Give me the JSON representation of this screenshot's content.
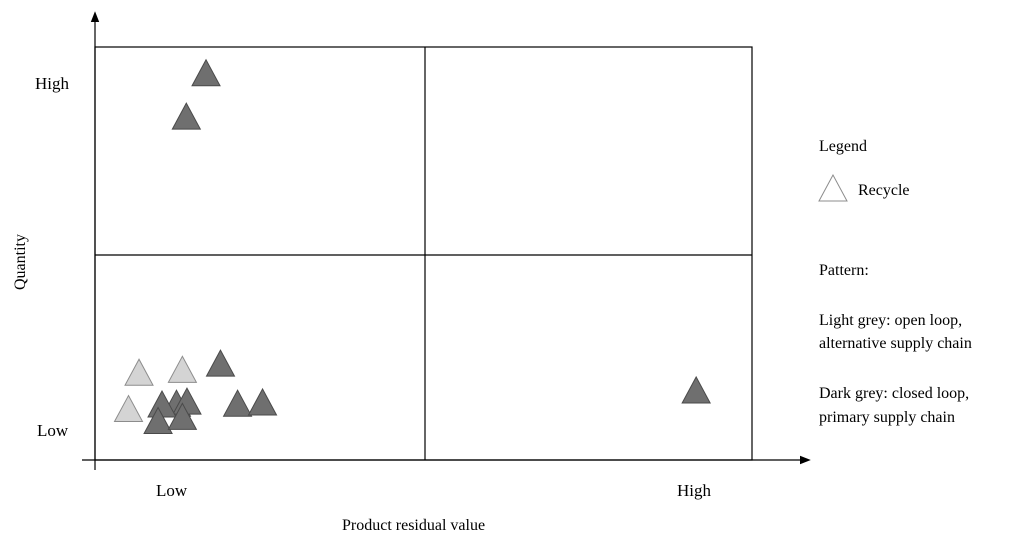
{
  "chart_data": {
    "type": "scatter",
    "title": "",
    "xlabel": "Product residual value",
    "ylabel": "Quantity",
    "x_ticks": [
      "Low",
      "High"
    ],
    "y_ticks": [
      "High",
      "Low"
    ],
    "xlim": [
      0,
      1
    ],
    "ylim": [
      0,
      1
    ],
    "grid": "2x2 quadrants",
    "legend_placement": "right",
    "legend": {
      "heading": "Legend",
      "marker_label": "Recycle",
      "pattern_heading": "Pattern:",
      "light_lines": [
        "Light grey: open loop,",
        "alternative supply chain"
      ],
      "dark_lines": [
        "Dark grey: closed loop,",
        "primary supply chain"
      ]
    },
    "colors": {
      "light": "#d4d4d4",
      "light_stroke": "#8c8c8c",
      "dark": "#6f6f6f",
      "dark_stroke": "#4a4a4a",
      "legend_marker": "#ffffff"
    },
    "series": [
      {
        "pattern": "light",
        "points": [
          {
            "x": 0.133,
            "y": 0.212
          },
          {
            "x": 0.067,
            "y": 0.205
          },
          {
            "x": 0.051,
            "y": 0.117
          }
        ]
      },
      {
        "pattern": "dark",
        "points": [
          {
            "x": 0.169,
            "y": 0.93
          },
          {
            "x": 0.139,
            "y": 0.825
          },
          {
            "x": 0.191,
            "y": 0.227
          },
          {
            "x": 0.124,
            "y": 0.13
          },
          {
            "x": 0.14,
            "y": 0.135
          },
          {
            "x": 0.102,
            "y": 0.128
          },
          {
            "x": 0.096,
            "y": 0.088
          },
          {
            "x": 0.133,
            "y": 0.098
          },
          {
            "x": 0.217,
            "y": 0.13
          },
          {
            "x": 0.255,
            "y": 0.133
          },
          {
            "x": 0.915,
            "y": 0.162
          }
        ]
      }
    ]
  }
}
